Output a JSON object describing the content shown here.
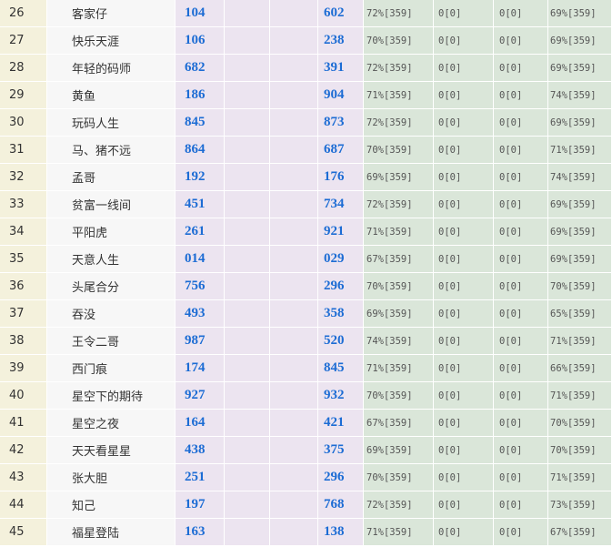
{
  "table": {
    "rows": [
      [
        "26",
        "客家仔",
        "104",
        "602",
        "72%[359]",
        "0[0]",
        "0[0]",
        "69%[359]"
      ],
      [
        "27",
        "快乐天涯",
        "106",
        "238",
        "70%[359]",
        "0[0]",
        "0[0]",
        "69%[359]"
      ],
      [
        "28",
        "年轻的码师",
        "682",
        "391",
        "72%[359]",
        "0[0]",
        "0[0]",
        "69%[359]"
      ],
      [
        "29",
        "黄鱼",
        "186",
        "904",
        "71%[359]",
        "0[0]",
        "0[0]",
        "74%[359]"
      ],
      [
        "30",
        "玩码人生",
        "845",
        "873",
        "72%[359]",
        "0[0]",
        "0[0]",
        "69%[359]"
      ],
      [
        "31",
        "马、猪不远",
        "864",
        "687",
        "70%[359]",
        "0[0]",
        "0[0]",
        "71%[359]"
      ],
      [
        "32",
        "孟哥",
        "192",
        "176",
        "69%[359]",
        "0[0]",
        "0[0]",
        "74%[359]"
      ],
      [
        "33",
        "贫富一线间",
        "451",
        "734",
        "72%[359]",
        "0[0]",
        "0[0]",
        "69%[359]"
      ],
      [
        "34",
        "平阳虎",
        "261",
        "921",
        "71%[359]",
        "0[0]",
        "0[0]",
        "69%[359]"
      ],
      [
        "35",
        "天意人生",
        "014",
        "029",
        "67%[359]",
        "0[0]",
        "0[0]",
        "69%[359]"
      ],
      [
        "36",
        "头尾合分",
        "756",
        "296",
        "70%[359]",
        "0[0]",
        "0[0]",
        "70%[359]"
      ],
      [
        "37",
        "吞没",
        "493",
        "358",
        "69%[359]",
        "0[0]",
        "0[0]",
        "65%[359]"
      ],
      [
        "38",
        "王令二哥",
        "987",
        "520",
        "74%[359]",
        "0[0]",
        "0[0]",
        "71%[359]"
      ],
      [
        "39",
        "西门痕",
        "174",
        "845",
        "71%[359]",
        "0[0]",
        "0[0]",
        "66%[359]"
      ],
      [
        "40",
        "星空下的期待",
        "927",
        "932",
        "70%[359]",
        "0[0]",
        "0[0]",
        "71%[359]"
      ],
      [
        "41",
        "星空之夜",
        "164",
        "421",
        "67%[359]",
        "0[0]",
        "0[0]",
        "70%[359]"
      ],
      [
        "42",
        "天天看星星",
        "438",
        "375",
        "69%[359]",
        "0[0]",
        "0[0]",
        "70%[359]"
      ],
      [
        "43",
        "张大胆",
        "251",
        "296",
        "70%[359]",
        "0[0]",
        "0[0]",
        "71%[359]"
      ],
      [
        "44",
        "知己",
        "197",
        "768",
        "72%[359]",
        "0[0]",
        "0[0]",
        "73%[359]"
      ],
      [
        "45",
        "福星登陆",
        "163",
        "138",
        "71%[359]",
        "0[0]",
        "0[0]",
        "67%[359]"
      ]
    ]
  }
}
